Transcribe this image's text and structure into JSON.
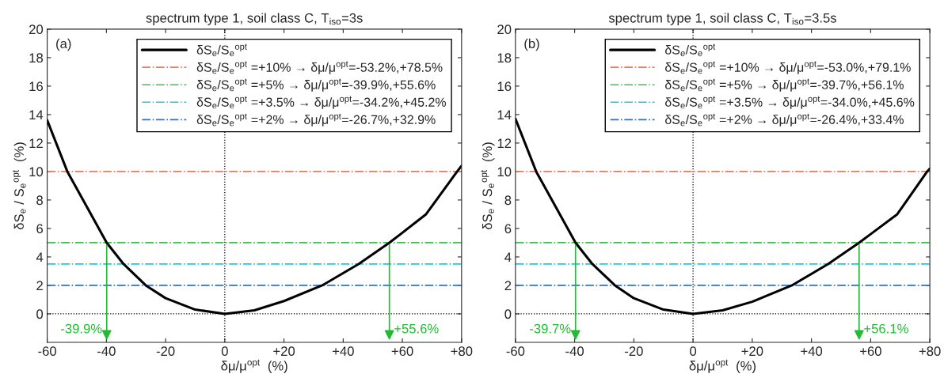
{
  "chart_data": [
    {
      "type": "line",
      "title": "spectrum type 1, soil class C, T$_{iso}$=3s",
      "xlabel": "δμ/μ$^{opt}$  (%)",
      "ylabel": "δS$_{e}$ / S$_{e}$$^{opt}$  (%)",
      "series": [
        {
          "name": "δS$_{e}$/S$_{e}$$^{opt}$",
          "color": "#000000",
          "x": [
            -60,
            -53.2,
            -39.9,
            -34.2,
            -26.7,
            -20,
            -10,
            0,
            10,
            20,
            32.9,
            45.2,
            55.6,
            60,
            68,
            78.5,
            80
          ],
          "values": [
            13.6,
            10,
            5,
            3.5,
            2,
            1.1,
            0.3,
            0,
            0.25,
            0.9,
            2,
            3.5,
            5,
            5.7,
            7,
            10,
            10.4
          ]
        }
      ],
      "ref_lines": [
        {
          "axis": "y",
          "value": 10,
          "label": "δS$_{e}$/S$_{e}$$^{opt}$ =+10% → δμ/μ$^{opt}$=-53.2%,+78.5%",
          "color": "#f07858",
          "line_style": "dashdot"
        },
        {
          "axis": "y",
          "value": 5,
          "label": "δS$_{e}$/S$_{e}$$^{opt}$ =+5% → δμ/μ$^{opt}$=-39.9%,+55.6%",
          "color": "#40c050",
          "line_style": "dashdot"
        },
        {
          "axis": "y",
          "value": 3.5,
          "label": "δS$_{e}$/S$_{e}$$^{opt}$ =+3.5% → δμ/μ$^{opt}$=-34.2%,+45.2%",
          "color": "#20c8e0",
          "line_style": "dashdot"
        },
        {
          "axis": "y",
          "value": 2,
          "label": "δS$_{e}$/S$_{e}$$^{opt}$ =+2% → δμ/μ$^{opt}$=-26.7%,+32.9%",
          "color": "#3070c8",
          "line_style": "dashdot"
        },
        {
          "axis": "y",
          "value": 0,
          "color": "#000000",
          "line_style": "dotted"
        },
        {
          "axis": "x",
          "value": 0,
          "color": "#000000",
          "line_style": "dotted"
        }
      ],
      "annotations": [
        "(a)",
        {
          "text": "-39.9%",
          "x": -39.9,
          "y": 5
        },
        {
          "text": "+55.6%",
          "x": 55.6,
          "y": 5
        }
      ],
      "xlim": [
        -60,
        80
      ],
      "xticks": [
        -60,
        -40,
        -20,
        0,
        {
          "value": 20,
          "label": "+20"
        },
        {
          "value": 40,
          "label": "+40"
        },
        {
          "value": 60,
          "label": "+60"
        },
        {
          "value": 80,
          "label": "+80"
        }
      ],
      "ylim": [
        -2,
        20
      ],
      "yticks": [
        0,
        2,
        4,
        6,
        8,
        10,
        12,
        14,
        16,
        18,
        20
      ],
      "grid": false,
      "legend": "top right",
      "line_style": "solid",
      "marker": "none"
    },
    {
      "type": "line",
      "title": "spectrum type 1, soil class C, T$_{iso}$=3.5s",
      "xlabel": "δμ/μ$^{opt}$  (%)",
      "ylabel": "δS$_{e}$ / S$_{e}$$^{opt}$  (%)",
      "series": [
        {
          "name": "δS$_{e}$/S$_{e}$$^{opt}$",
          "color": "#000000",
          "x": [
            -60,
            -53,
            -39.7,
            -34,
            -26.4,
            -20,
            -10,
            0,
            10,
            20,
            33.4,
            45.6,
            56.1,
            60,
            69,
            79.1,
            80
          ],
          "values": [
            13.7,
            10,
            5,
            3.5,
            2,
            1.1,
            0.3,
            0,
            0.25,
            0.85,
            2,
            3.5,
            5,
            5.6,
            7,
            10,
            10.2
          ]
        }
      ],
      "ref_lines": [
        {
          "axis": "y",
          "value": 10,
          "label": "δS$_{e}$/S$_{e}$$^{opt}$ =+10% → δμ/μ$^{opt}$=-53.0%,+79.1%",
          "color": "#f07858",
          "line_style": "dashdot"
        },
        {
          "axis": "y",
          "value": 5,
          "label": "δS$_{e}$/S$_{e}$$^{opt}$ =+5% → δμ/μ$^{opt}$=-39.7%,+56.1%",
          "color": "#40c050",
          "line_style": "dashdot"
        },
        {
          "axis": "y",
          "value": 3.5,
          "label": "δS$_{e}$/S$_{e}$$^{opt}$ =+3.5% → δμ/μ$^{opt}$=-34.0%,+45.6%",
          "color": "#20c8e0",
          "line_style": "dashdot"
        },
        {
          "axis": "y",
          "value": 2,
          "label": "δS$_{e}$/S$_{e}$$^{opt}$ =+2% → δμ/μ$^{opt}$=-26.4%,+33.4%",
          "color": "#3070c8",
          "line_style": "dashdot"
        },
        {
          "axis": "y",
          "value": 0,
          "color": "#000000",
          "line_style": "dotted"
        },
        {
          "axis": "x",
          "value": 0,
          "color": "#000000",
          "line_style": "dotted"
        }
      ],
      "annotations": [
        "(b)",
        {
          "text": "-39.7%",
          "x": -39.7,
          "y": 5
        },
        {
          "text": "+56.1%",
          "x": 56.1,
          "y": 5
        }
      ],
      "xlim": [
        -60,
        80
      ],
      "xticks": [
        -60,
        -40,
        -20,
        0,
        {
          "value": 20,
          "label": "+20"
        },
        {
          "value": 40,
          "label": "+40"
        },
        {
          "value": 60,
          "label": "+60"
        },
        {
          "value": 80,
          "label": "+80"
        }
      ],
      "ylim": [
        -2,
        20
      ],
      "yticks": [
        0,
        2,
        4,
        6,
        8,
        10,
        12,
        14,
        16,
        18,
        20
      ],
      "grid": false,
      "legend": "top right",
      "line_style": "solid",
      "marker": "none"
    }
  ]
}
